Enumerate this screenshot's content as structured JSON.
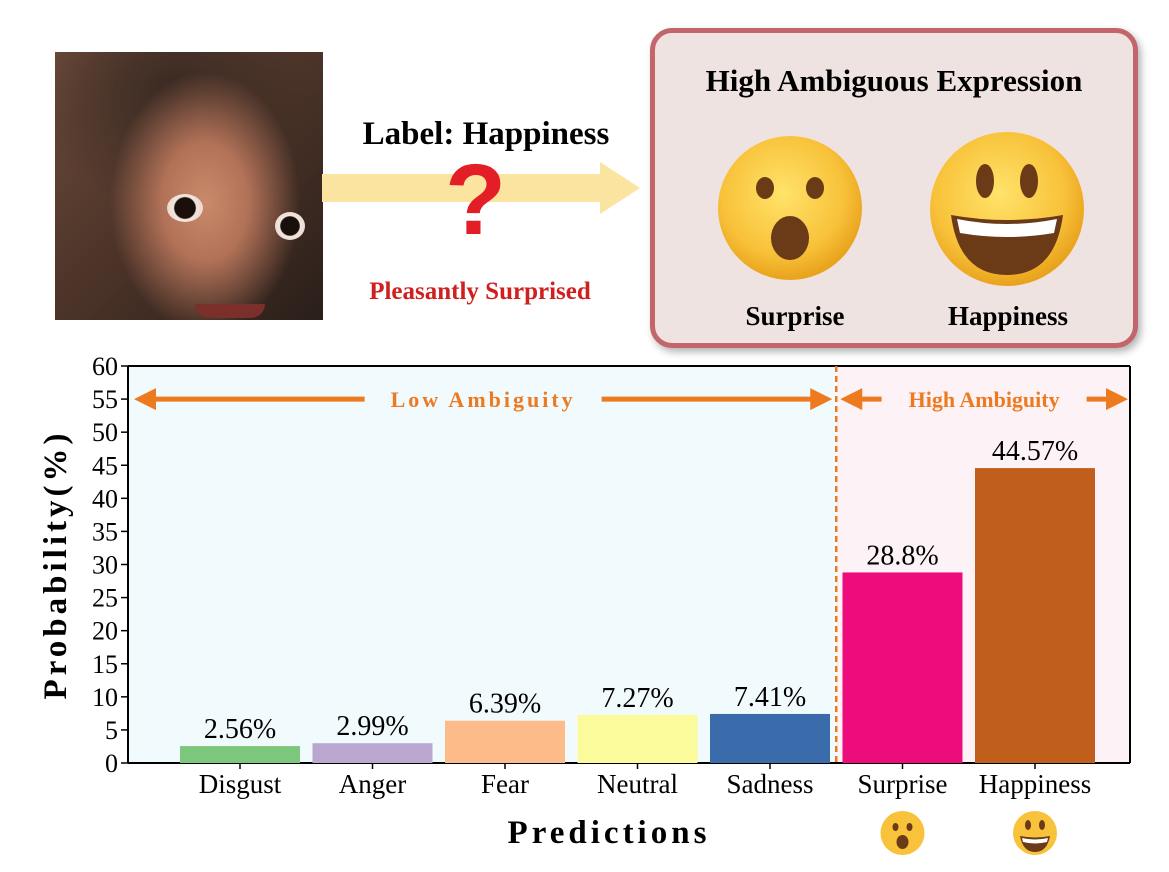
{
  "top": {
    "label_text": "Label: Happiness",
    "question_mark": "?",
    "pleasant_text": "Pleasantly Surprised",
    "box_title": "High Ambiguous Expression",
    "box_left_caption": "Surprise",
    "box_right_caption": "Happiness"
  },
  "colors": {
    "arrow_yellow": "#fbe3a0",
    "question_red": "#e41e26",
    "pleasant_red": "#d01f1f",
    "box_border": "#c2666b",
    "box_fill": "#efe3e1",
    "annotation_orange": "#ee7a20",
    "low_region_bg": "#f1fafd",
    "high_region_bg": "#fdf3f7"
  },
  "chart_data": {
    "type": "bar",
    "categories": [
      "Disgust",
      "Anger",
      "Fear",
      "Neutral",
      "Sadness",
      "Surprise",
      "Happiness"
    ],
    "values": [
      2.56,
      2.99,
      6.39,
      7.27,
      7.41,
      28.8,
      44.57
    ],
    "value_labels": [
      "2.56%",
      "2.99%",
      "6.39%",
      "7.27%",
      "7.41%",
      "28.8%",
      "44.57%"
    ],
    "bar_colors": [
      "#7cc77b",
      "#b9a7d0",
      "#fcbb88",
      "#fbfb9c",
      "#3a6bab",
      "#ec0c7c",
      "#c05e1c"
    ],
    "xlabel": "Predictions",
    "ylabel": "Probability(%)",
    "ylim": [
      0,
      60
    ],
    "yticks": [
      0,
      5,
      10,
      15,
      20,
      25,
      30,
      35,
      40,
      45,
      50,
      55,
      60
    ],
    "grid": false,
    "regions": [
      {
        "label": "Low Ambiguity",
        "from_category": "Disgust",
        "to_category": "Sadness"
      },
      {
        "label": "High Ambiguity",
        "from_category": "Surprise",
        "to_category": "Happiness"
      }
    ],
    "category_icons": {
      "Surprise": "surprised-face-icon",
      "Happiness": "grinning-face-icon"
    }
  }
}
